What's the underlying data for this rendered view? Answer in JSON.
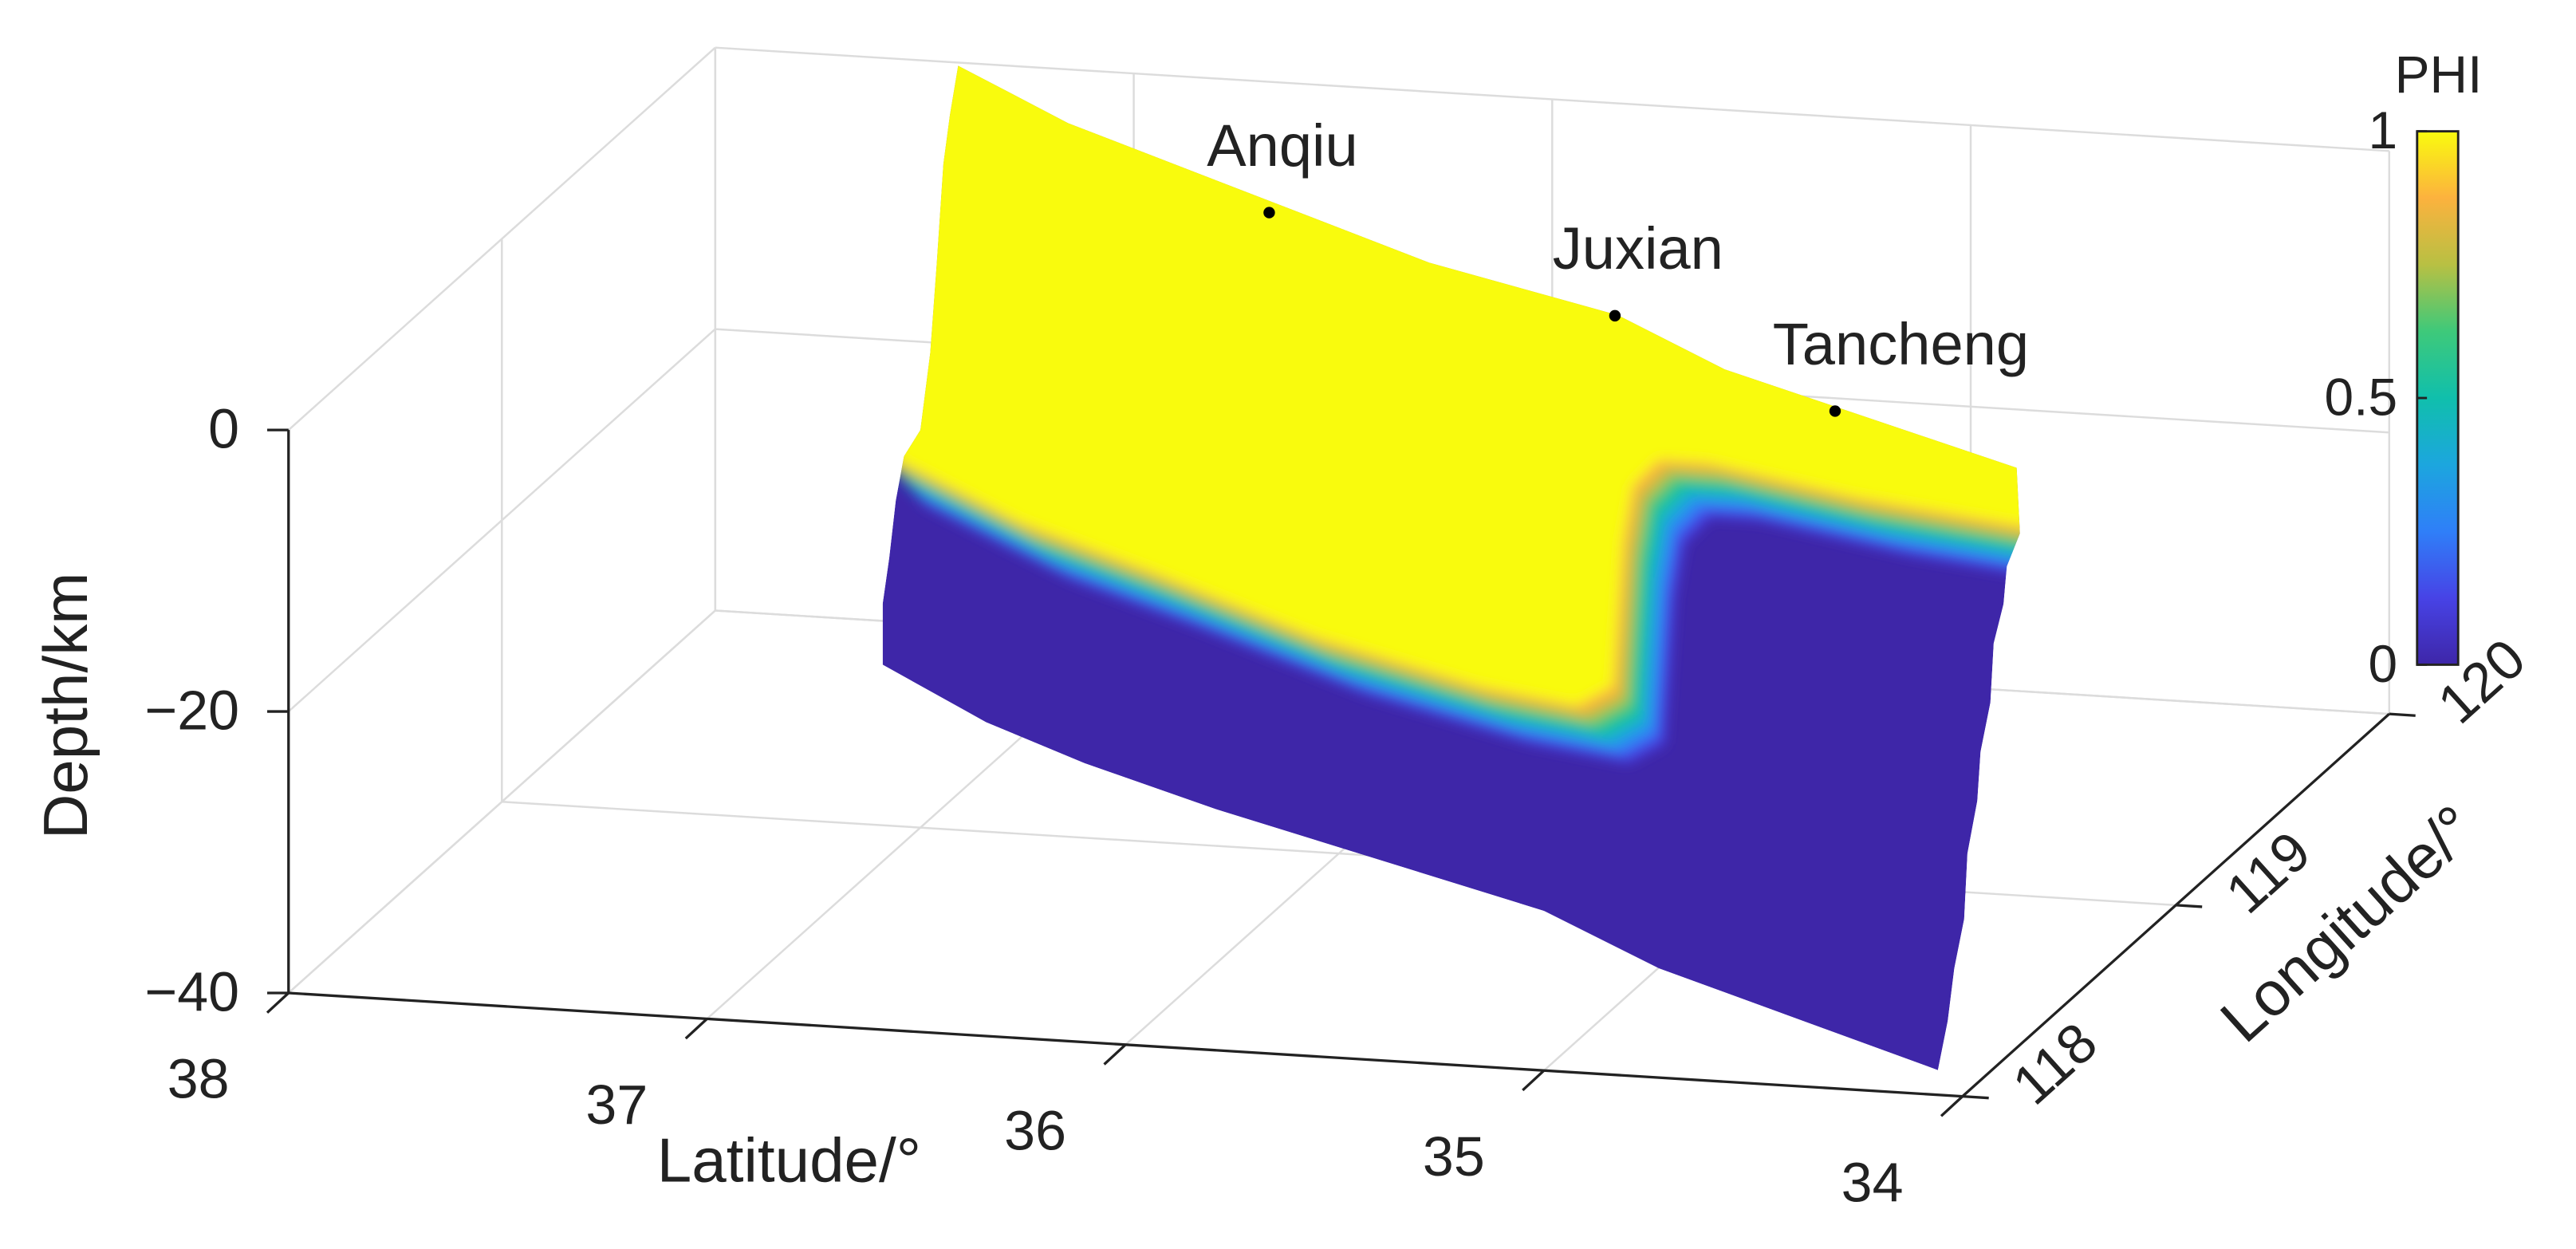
{
  "chart_data": {
    "type": "surface3d",
    "xlabel": "Latitude/°",
    "ylabel": "Longitude/°",
    "zlabel": "Depth/km",
    "xlim": [
      34,
      38
    ],
    "xticks": [
      34,
      35,
      36,
      37,
      38
    ],
    "xdir": "reverse",
    "ylim": [
      118,
      120
    ],
    "yticks": [
      118,
      119,
      120
    ],
    "zlim": [
      -40,
      0
    ],
    "zticks": [
      {
        "value": -40,
        "label": "−40"
      },
      {
        "value": -20,
        "label": "−20"
      },
      0
    ],
    "grid": true,
    "colormap": [
      "#3e26a8",
      "#4743e6",
      "#2f7ff8",
      "#1ca6de",
      "#10bfac",
      "#3ec97a",
      "#b8c043",
      "#fcb23e",
      "#f9fb0e"
    ],
    "colorbar": {
      "title": "PHI",
      "lim": [
        0,
        1
      ],
      "ticks": [
        0,
        0.5,
        1
      ]
    },
    "annotations": [
      {
        "text": "Anqiu",
        "x": 36.35,
        "y": 119.36,
        "z": 0
      },
      {
        "text": "Juxian",
        "x": 35.32,
        "y": 118.96,
        "z": 0
      },
      {
        "text": "Tancheng",
        "x": 34.59,
        "y": 118.56,
        "z": 0
      }
    ]
  }
}
